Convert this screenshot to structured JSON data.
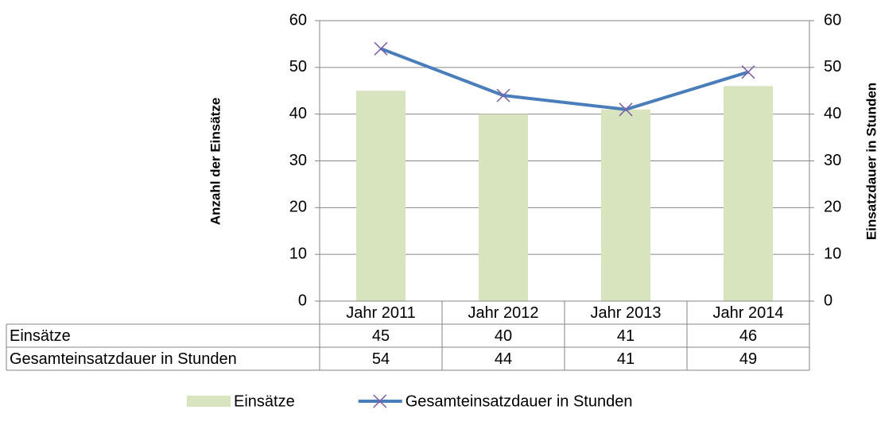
{
  "chart_data": {
    "type": "bar",
    "categories": [
      "Jahr 2011",
      "Jahr 2012",
      "Jahr 2013",
      "Jahr 2014"
    ],
    "series": [
      {
        "name": "Einsätze",
        "type": "bar",
        "color": "#d7e4bd",
        "values": [
          45,
          40,
          41,
          46
        ]
      },
      {
        "name": "Gesamteinsatzdauer in Stunden",
        "type": "line",
        "axis": "y2",
        "color": "#4a7ebb",
        "marker_color": "#7b5ea7",
        "values": [
          54,
          44,
          41,
          49
        ]
      }
    ],
    "ylabel": "Anzahl der Einsätze",
    "y2label": "Einsatzdauer in Stunden",
    "ylim": [
      0,
      60
    ],
    "yticks": [
      0,
      10,
      20,
      30,
      40,
      50,
      60
    ],
    "y2lim": [
      0,
      60
    ],
    "y2ticks": [
      0,
      10,
      20,
      30,
      40,
      50,
      60
    ],
    "grid": true,
    "data_table": true,
    "legend": "bottom"
  }
}
